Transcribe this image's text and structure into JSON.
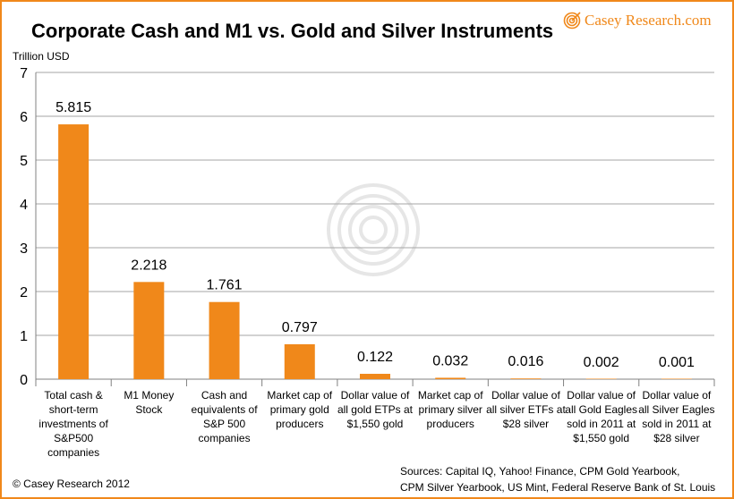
{
  "logo_text": "Casey Research.com",
  "footer_copyright": "© Casey Research 2012",
  "sources": [
    "Sources: Capital IQ, Yahoo! Finance, CPM Gold Yearbook,",
    "CPM Silver Yearbook, US Mint, Federal Reserve Bank of St. Louis"
  ],
  "colors": {
    "bar": "#f0881a",
    "frame": "#f0881a",
    "grid": "#a6a6a6"
  },
  "chart_data": {
    "type": "bar",
    "title": "Corporate Cash and M1 vs. Gold and Silver Instruments",
    "ylabel": "Trillion USD",
    "xlabel": "",
    "ylim": [
      0,
      7
    ],
    "yticks": [
      "0",
      "1",
      "2",
      "3",
      "4",
      "5",
      "6",
      "7"
    ],
    "grid": true,
    "categories": [
      [
        "Total cash &",
        "short-term",
        "investments of",
        "S&P500",
        "companies"
      ],
      [
        "M1 Money",
        "Stock"
      ],
      [
        "Cash and",
        "equivalents of",
        "S&P 500",
        "companies"
      ],
      [
        "Market cap of",
        "primary gold",
        "producers"
      ],
      [
        "Dollar value of",
        "all gold ETPs at",
        "$1,550 gold"
      ],
      [
        "Market cap of",
        "primary silver",
        "producers"
      ],
      [
        "Dollar value of",
        "all silver ETFs at",
        "$28 silver"
      ],
      [
        "Dollar value of",
        "all Gold Eagles",
        "sold in 2011 at",
        "$1,550 gold"
      ],
      [
        "Dollar value of",
        "all Silver Eagles",
        "sold in 2011 at",
        "$28 silver"
      ]
    ],
    "values": [
      5.815,
      2.218,
      1.761,
      0.797,
      0.122,
      0.032,
      0.016,
      0.002,
      0.001
    ],
    "data_labels": [
      "5.815",
      "2.218",
      "1.761",
      "0.797",
      "0.122",
      "0.032",
      "0.016",
      "0.002",
      "0.001"
    ]
  }
}
